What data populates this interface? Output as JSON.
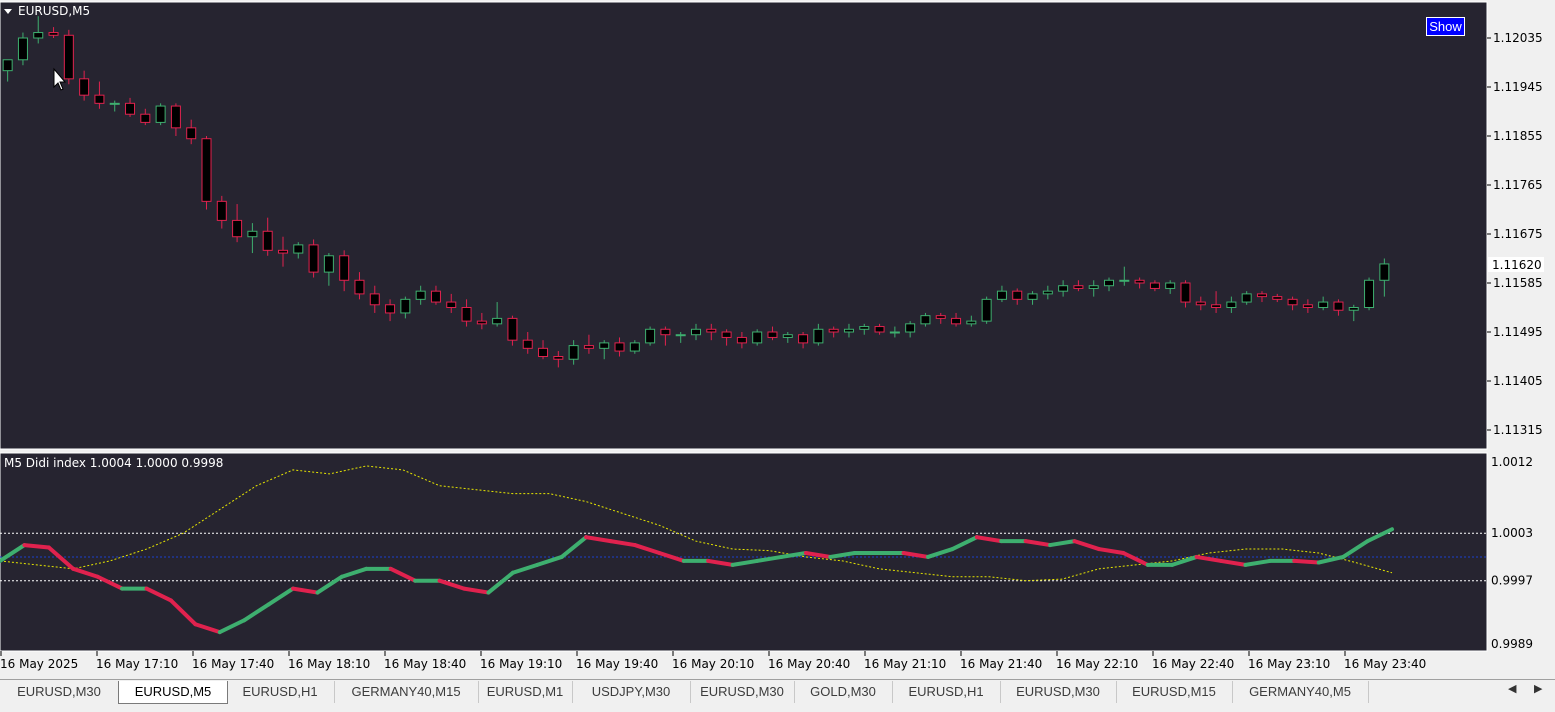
{
  "chart": {
    "symbol_label": "EURUSD,M5",
    "price_axis": [
      "1.12035",
      "1.11945",
      "1.11855",
      "1.11765",
      "1.11675",
      "1.11585",
      "1.11495",
      "1.11405",
      "1.11315"
    ],
    "current_price": "1.11620",
    "show_button": "Show",
    "indicator_label": "M5 Didi index 1.0004 1.0000 0.9998",
    "indicator_axis": [
      "1.0012",
      "1.0003",
      "0.9997",
      "0.9989"
    ],
    "time_axis": [
      "16 May 2025",
      "16 May 17:10",
      "16 May 17:40",
      "16 May 18:10",
      "16 May 18:40",
      "16 May 19:10",
      "16 May 19:40",
      "16 May 20:10",
      "16 May 20:40",
      "16 May 21:10",
      "16 May 21:40",
      "16 May 22:10",
      "16 May 22:40",
      "16 May 23:10",
      "16 May 23:40"
    ],
    "colors": {
      "background": "#262430",
      "bull": "#3eaf6f",
      "bear": "#e0224e",
      "grid": "#ffffff",
      "slow_line": "#e6e600",
      "mid_line": "#1a3fd0"
    }
  },
  "chart_data": {
    "type": "candlestick",
    "candles_ohlc": [
      [
        1.11975,
        1.11995,
        1.11955,
        1.11995
      ],
      [
        1.11995,
        1.12045,
        1.11985,
        1.12035
      ],
      [
        1.12035,
        1.12075,
        1.12025,
        1.12045
      ],
      [
        1.12045,
        1.12055,
        1.12035,
        1.1204
      ],
      [
        1.1204,
        1.1205,
        1.1195,
        1.1196
      ],
      [
        1.1196,
        1.11975,
        1.1192,
        1.1193
      ],
      [
        1.1193,
        1.11955,
        1.11905,
        1.11915
      ],
      [
        1.11915,
        1.1192,
        1.119,
        1.11915
      ],
      [
        1.11915,
        1.11925,
        1.1189,
        1.11895
      ],
      [
        1.11895,
        1.11905,
        1.11875,
        1.1188
      ],
      [
        1.1188,
        1.11915,
        1.11875,
        1.1191
      ],
      [
        1.1191,
        1.11915,
        1.11855,
        1.1187
      ],
      [
        1.1187,
        1.11885,
        1.1184,
        1.1185
      ],
      [
        1.1185,
        1.11855,
        1.1172,
        1.11735
      ],
      [
        1.11735,
        1.11745,
        1.11685,
        1.117
      ],
      [
        1.117,
        1.1173,
        1.1166,
        1.1167
      ],
      [
        1.1167,
        1.11695,
        1.1164,
        1.1168
      ],
      [
        1.1168,
        1.11705,
        1.11635,
        1.11645
      ],
      [
        1.11645,
        1.1167,
        1.11615,
        1.1164
      ],
      [
        1.1164,
        1.1166,
        1.1163,
        1.11655
      ],
      [
        1.11655,
        1.11665,
        1.11595,
        1.11605
      ],
      [
        1.11605,
        1.1164,
        1.1158,
        1.11635
      ],
      [
        1.11635,
        1.11645,
        1.1157,
        1.1159
      ],
      [
        1.1159,
        1.11605,
        1.11555,
        1.11565
      ],
      [
        1.11565,
        1.1158,
        1.1153,
        1.11545
      ],
      [
        1.11545,
        1.11555,
        1.11515,
        1.1153
      ],
      [
        1.1153,
        1.1156,
        1.1152,
        1.11555
      ],
      [
        1.11555,
        1.1158,
        1.11545,
        1.1157
      ],
      [
        1.1157,
        1.1158,
        1.11545,
        1.1155
      ],
      [
        1.1155,
        1.11565,
        1.1153,
        1.1154
      ],
      [
        1.1154,
        1.11555,
        1.11505,
        1.11515
      ],
      [
        1.11515,
        1.1153,
        1.115,
        1.1151
      ],
      [
        1.1151,
        1.1155,
        1.11505,
        1.1152
      ],
      [
        1.1152,
        1.11525,
        1.1147,
        1.1148
      ],
      [
        1.1148,
        1.11495,
        1.11455,
        1.11465
      ],
      [
        1.11465,
        1.1148,
        1.11445,
        1.1145
      ],
      [
        1.1145,
        1.1146,
        1.1143,
        1.11445
      ],
      [
        1.11445,
        1.1148,
        1.11435,
        1.1147
      ],
      [
        1.1147,
        1.1149,
        1.11455,
        1.11465
      ],
      [
        1.11465,
        1.1148,
        1.11445,
        1.11475
      ],
      [
        1.11475,
        1.11485,
        1.1145,
        1.1146
      ],
      [
        1.1146,
        1.1148,
        1.11455,
        1.11475
      ],
      [
        1.11475,
        1.11505,
        1.1147,
        1.115
      ],
      [
        1.115,
        1.11505,
        1.1147,
        1.1149
      ],
      [
        1.1149,
        1.11495,
        1.11475,
        1.1149
      ],
      [
        1.1149,
        1.1151,
        1.1148,
        1.115
      ],
      [
        1.115,
        1.1151,
        1.1148,
        1.11495
      ],
      [
        1.11495,
        1.115,
        1.1147,
        1.11485
      ],
      [
        1.11485,
        1.11495,
        1.11465,
        1.11475
      ],
      [
        1.11475,
        1.115,
        1.1147,
        1.11495
      ],
      [
        1.11495,
        1.11505,
        1.1148,
        1.11485
      ],
      [
        1.11485,
        1.11495,
        1.11475,
        1.1149
      ],
      [
        1.1149,
        1.11495,
        1.11465,
        1.11475
      ],
      [
        1.11475,
        1.1151,
        1.1147,
        1.115
      ],
      [
        1.115,
        1.11505,
        1.11485,
        1.11495
      ],
      [
        1.11495,
        1.1151,
        1.11485,
        1.115
      ],
      [
        1.115,
        1.1151,
        1.1149,
        1.11505
      ],
      [
        1.11505,
        1.1151,
        1.1149,
        1.11495
      ],
      [
        1.11495,
        1.11505,
        1.11485,
        1.11495
      ],
      [
        1.11495,
        1.11515,
        1.11485,
        1.1151
      ],
      [
        1.1151,
        1.1153,
        1.11505,
        1.11525
      ],
      [
        1.11525,
        1.1153,
        1.1151,
        1.1152
      ],
      [
        1.1152,
        1.1153,
        1.11505,
        1.1151
      ],
      [
        1.1151,
        1.11525,
        1.11505,
        1.11515
      ],
      [
        1.11515,
        1.1156,
        1.1151,
        1.11555
      ],
      [
        1.11555,
        1.1158,
        1.1155,
        1.1157
      ],
      [
        1.1157,
        1.11575,
        1.11545,
        1.11555
      ],
      [
        1.11555,
        1.1157,
        1.11545,
        1.11565
      ],
      [
        1.11565,
        1.1158,
        1.11555,
        1.1157
      ],
      [
        1.1157,
        1.1159,
        1.1156,
        1.1158
      ],
      [
        1.1158,
        1.1159,
        1.1157,
        1.11575
      ],
      [
        1.11575,
        1.1159,
        1.1156,
        1.1158
      ],
      [
        1.1158,
        1.11595,
        1.1157,
        1.1159
      ],
      [
        1.1159,
        1.11615,
        1.1158,
        1.1159
      ],
      [
        1.1159,
        1.11595,
        1.11575,
        1.11585
      ],
      [
        1.11585,
        1.1159,
        1.1157,
        1.11575
      ],
      [
        1.11575,
        1.1159,
        1.11565,
        1.11585
      ],
      [
        1.11585,
        1.1159,
        1.1154,
        1.1155
      ],
      [
        1.1155,
        1.1156,
        1.11535,
        1.11545
      ],
      [
        1.11545,
        1.1157,
        1.1153,
        1.1154
      ],
      [
        1.1154,
        1.1156,
        1.1153,
        1.1155
      ],
      [
        1.1155,
        1.1157,
        1.11545,
        1.11565
      ],
      [
        1.11565,
        1.1157,
        1.1155,
        1.1156
      ],
      [
        1.1156,
        1.11565,
        1.1155,
        1.11555
      ],
      [
        1.11555,
        1.1156,
        1.11535,
        1.11545
      ],
      [
        1.11545,
        1.11555,
        1.1153,
        1.1154
      ],
      [
        1.1154,
        1.1156,
        1.11535,
        1.1155
      ],
      [
        1.1155,
        1.11555,
        1.11525,
        1.11535
      ],
      [
        1.11535,
        1.11545,
        1.11515,
        1.1154
      ],
      [
        1.1154,
        1.11595,
        1.11535,
        1.1159
      ],
      [
        1.1159,
        1.1163,
        1.1156,
        1.1162
      ]
    ],
    "indicator": {
      "levels": [
        1.0003,
        0.9997
      ],
      "fast_line": [
        0.99995,
        1.00015,
        1.00012,
        0.99985,
        0.99975,
        0.9996,
        0.9996,
        0.99945,
        0.99915,
        0.99905,
        0.9992,
        0.9994,
        0.9996,
        0.99955,
        0.99975,
        0.99985,
        0.99985,
        0.9997,
        0.9997,
        0.9996,
        0.99955,
        0.9998,
        0.9999,
        1.0,
        1.00025,
        1.0002,
        1.00015,
        1.00005,
        0.99995,
        0.99995,
        0.9999,
        0.99995,
        1.0,
        1.00005,
        1.0,
        1.00005,
        1.00005,
        1.00005,
        1.0,
        1.0001,
        1.00025,
        1.0002,
        1.0002,
        1.00015,
        1.0002,
        1.0001,
        1.00005,
        0.9999,
        0.9999,
        1.0,
        0.99995,
        0.9999,
        0.99995,
        0.99995,
        0.99993,
        1.0,
        1.0002,
        1.00035
      ],
      "slow_line": [
        0.99995,
        0.9999,
        0.99985,
        0.99995,
        1.0001,
        1.0003,
        1.0006,
        1.0009,
        1.0011,
        1.00105,
        1.00115,
        1.0011,
        1.0009,
        1.00085,
        1.0008,
        1.0008,
        1.0007,
        1.00055,
        1.0004,
        1.0002,
        1.0001,
        1.00008,
        1.0,
        0.99995,
        0.99985,
        0.9998,
        0.99975,
        0.99975,
        0.9997,
        0.99972,
        0.99985,
        0.9999,
        0.99995,
        1.00005,
        1.0001,
        1.0001,
        1.00005,
        0.99993,
        0.9998
      ]
    }
  },
  "tabs": [
    {
      "label": "EURUSD,M30",
      "active": false
    },
    {
      "label": "EURUSD,M5",
      "active": true
    },
    {
      "label": "EURUSD,H1",
      "active": false
    },
    {
      "label": "GERMANY40,M15",
      "active": false
    },
    {
      "label": "EURUSD,M1",
      "active": false
    },
    {
      "label": "USDJPY,M30",
      "active": false
    },
    {
      "label": "EURUSD,M30",
      "active": false
    },
    {
      "label": "GOLD,M30",
      "active": false
    },
    {
      "label": "EURUSD,H1",
      "active": false
    },
    {
      "label": "EURUSD,M30",
      "active": false
    },
    {
      "label": "EURUSD,M15",
      "active": false
    },
    {
      "label": "GERMANY40,M5",
      "active": false
    }
  ],
  "tab_scroll": {
    "left_icon": "triangle-left-icon",
    "right_icon": "triangle-right-icon"
  }
}
